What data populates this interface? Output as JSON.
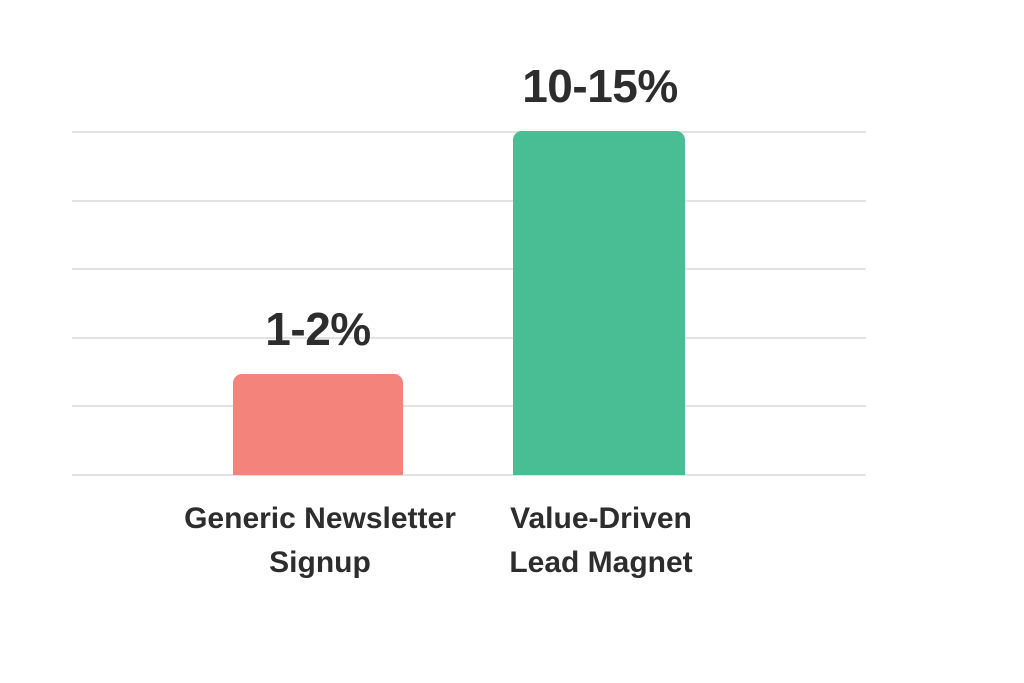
{
  "chart_data": {
    "type": "bar",
    "title": "",
    "xlabel": "",
    "ylabel": "",
    "categories": [
      "Generic Newsletter Signup",
      "Value-Driven Lead Magnet"
    ],
    "value_labels": [
      "1-2%",
      "10-15%"
    ],
    "value_ranges_percent": [
      [
        1,
        2
      ],
      [
        10,
        15
      ]
    ],
    "values": [
      1.5,
      12.5
    ],
    "ylim": [
      0,
      12.5
    ],
    "grid": true,
    "gridline_count": 6,
    "legend": false,
    "bar_colors": [
      "#F3837B",
      "#49BD93"
    ]
  },
  "colors": {
    "background": "#FFFFFF",
    "gridline": "#E2E2E2",
    "label_text": "#2D2D2D"
  }
}
